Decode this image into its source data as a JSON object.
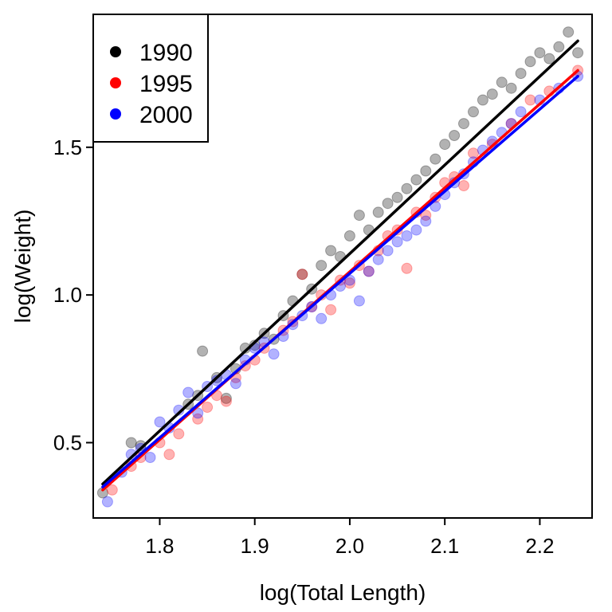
{
  "chart_data": {
    "type": "scatter",
    "title": "",
    "xlabel": "log(Total Length)",
    "ylabel": "log(Weight)",
    "xlim": [
      1.73,
      2.255
    ],
    "ylim": [
      0.245,
      1.95
    ],
    "xticks": [
      {
        "value": 1.8,
        "label": "1.8"
      },
      {
        "value": 1.9,
        "label": "1.9"
      },
      {
        "value": 2.0,
        "label": "2.0"
      },
      {
        "value": 2.1,
        "label": "2.1"
      },
      {
        "value": 2.2,
        "label": "2.2"
      }
    ],
    "yticks": [
      {
        "value": 0.5,
        "label": "0.5"
      },
      {
        "value": 1.0,
        "label": "1.0"
      },
      {
        "value": 1.5,
        "label": "1.5"
      }
    ],
    "grid": false,
    "legend": {
      "position": "top-left"
    },
    "series": [
      {
        "name": "1990",
        "color": "#000000",
        "fit": {
          "x": [
            1.74,
            2.24
          ],
          "y": [
            0.36,
            1.86
          ]
        },
        "points": [
          [
            1.74,
            0.33
          ],
          [
            1.77,
            0.5
          ],
          [
            1.78,
            0.49
          ],
          [
            1.83,
            0.63
          ],
          [
            1.84,
            0.66
          ],
          [
            1.845,
            0.81
          ],
          [
            1.86,
            0.72
          ],
          [
            1.87,
            0.65
          ],
          [
            1.88,
            0.75
          ],
          [
            1.89,
            0.82
          ],
          [
            1.9,
            0.83
          ],
          [
            1.91,
            0.87
          ],
          [
            1.92,
            0.85
          ],
          [
            1.93,
            0.93
          ],
          [
            1.94,
            0.98
          ],
          [
            1.95,
            1.07
          ],
          [
            1.96,
            1.02
          ],
          [
            1.97,
            1.1
          ],
          [
            1.98,
            1.15
          ],
          [
            1.99,
            1.13
          ],
          [
            2.0,
            1.2
          ],
          [
            2.01,
            1.27
          ],
          [
            2.02,
            1.22
          ],
          [
            2.03,
            1.28
          ],
          [
            2.04,
            1.31
          ],
          [
            2.05,
            1.33
          ],
          [
            2.06,
            1.36
          ],
          [
            2.07,
            1.39
          ],
          [
            2.08,
            1.42
          ],
          [
            2.09,
            1.46
          ],
          [
            2.1,
            1.51
          ],
          [
            2.11,
            1.54
          ],
          [
            2.12,
            1.58
          ],
          [
            2.13,
            1.62
          ],
          [
            2.14,
            1.66
          ],
          [
            2.15,
            1.68
          ],
          [
            2.16,
            1.72
          ],
          [
            2.17,
            1.7
          ],
          [
            2.18,
            1.75
          ],
          [
            2.19,
            1.79
          ],
          [
            2.2,
            1.82
          ],
          [
            2.21,
            1.8
          ],
          [
            2.22,
            1.84
          ],
          [
            2.23,
            1.89
          ],
          [
            2.24,
            1.82
          ]
        ]
      },
      {
        "name": "1995",
        "color": "#ff0000",
        "fit": {
          "x": [
            1.74,
            2.24
          ],
          "y": [
            0.34,
            1.76
          ]
        },
        "points": [
          [
            1.75,
            0.34
          ],
          [
            1.77,
            0.42
          ],
          [
            1.78,
            0.45
          ],
          [
            1.8,
            0.5
          ],
          [
            1.81,
            0.46
          ],
          [
            1.82,
            0.53
          ],
          [
            1.84,
            0.58
          ],
          [
            1.85,
            0.62
          ],
          [
            1.86,
            0.66
          ],
          [
            1.87,
            0.64
          ],
          [
            1.88,
            0.72
          ],
          [
            1.89,
            0.76
          ],
          [
            1.9,
            0.78
          ],
          [
            1.91,
            0.82
          ],
          [
            1.93,
            0.88
          ],
          [
            1.94,
            0.91
          ],
          [
            1.95,
            1.07
          ],
          [
            1.96,
            0.96
          ],
          [
            1.97,
            1.0
          ],
          [
            1.98,
            0.95
          ],
          [
            1.99,
            1.05
          ],
          [
            2.0,
            1.04
          ],
          [
            2.01,
            1.1
          ],
          [
            2.02,
            1.08
          ],
          [
            2.03,
            1.15
          ],
          [
            2.04,
            1.2
          ],
          [
            2.05,
            1.22
          ],
          [
            2.06,
            1.09
          ],
          [
            2.07,
            1.28
          ],
          [
            2.08,
            1.27
          ],
          [
            2.09,
            1.33
          ],
          [
            2.1,
            1.38
          ],
          [
            2.11,
            1.4
          ],
          [
            2.12,
            1.37
          ],
          [
            2.13,
            1.48
          ],
          [
            2.15,
            1.51
          ],
          [
            2.17,
            1.58
          ],
          [
            2.19,
            1.66
          ],
          [
            2.21,
            1.69
          ],
          [
            2.24,
            1.76
          ]
        ]
      },
      {
        "name": "2000",
        "color": "#0000ff",
        "fit": {
          "x": [
            1.74,
            2.24
          ],
          "y": [
            0.35,
            1.74
          ]
        },
        "points": [
          [
            1.745,
            0.3
          ],
          [
            1.76,
            0.4
          ],
          [
            1.77,
            0.46
          ],
          [
            1.78,
            0.48
          ],
          [
            1.79,
            0.45
          ],
          [
            1.8,
            0.57
          ],
          [
            1.81,
            0.55
          ],
          [
            1.82,
            0.61
          ],
          [
            1.83,
            0.67
          ],
          [
            1.84,
            0.6
          ],
          [
            1.85,
            0.69
          ],
          [
            1.86,
            0.71
          ],
          [
            1.87,
            0.73
          ],
          [
            1.88,
            0.7
          ],
          [
            1.89,
            0.78
          ],
          [
            1.9,
            0.82
          ],
          [
            1.91,
            0.84
          ],
          [
            1.92,
            0.8
          ],
          [
            1.93,
            0.86
          ],
          [
            1.94,
            0.9
          ],
          [
            1.95,
            0.93
          ],
          [
            1.96,
            0.96
          ],
          [
            1.97,
            0.92
          ],
          [
            1.98,
            1.0
          ],
          [
            1.99,
            1.03
          ],
          [
            2.0,
            1.05
          ],
          [
            2.01,
            0.98
          ],
          [
            2.02,
            1.08
          ],
          [
            2.03,
            1.12
          ],
          [
            2.04,
            1.15
          ],
          [
            2.05,
            1.18
          ],
          [
            2.06,
            1.2
          ],
          [
            2.07,
            1.22
          ],
          [
            2.08,
            1.25
          ],
          [
            2.09,
            1.3
          ],
          [
            2.1,
            1.34
          ],
          [
            2.11,
            1.38
          ],
          [
            2.12,
            1.41
          ],
          [
            2.13,
            1.45
          ],
          [
            2.14,
            1.49
          ],
          [
            2.15,
            1.52
          ],
          [
            2.16,
            1.55
          ],
          [
            2.17,
            1.58
          ],
          [
            2.18,
            1.62
          ],
          [
            2.2,
            1.66
          ],
          [
            2.22,
            1.7
          ],
          [
            2.24,
            1.74
          ]
        ]
      }
    ]
  }
}
